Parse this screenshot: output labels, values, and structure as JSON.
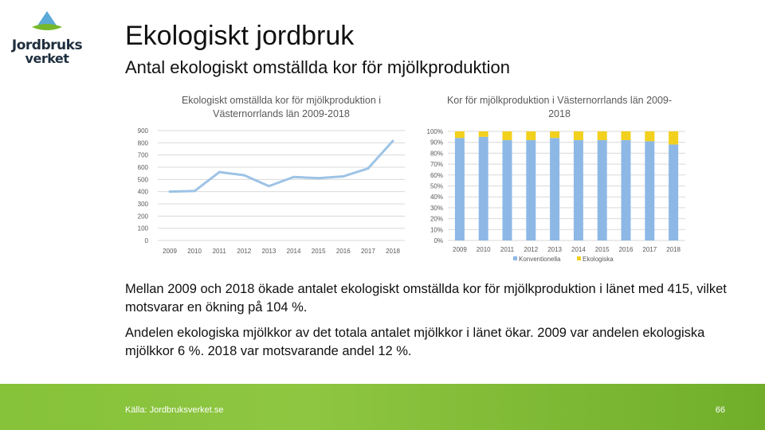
{
  "header": {
    "title": "Ekologiskt jordbruk",
    "subtitle": "Antal ekologiskt omställda kor för mjölkproduktion"
  },
  "logo": {
    "line1": "Jordbruks",
    "line2": "verket",
    "colors": {
      "sky": "#5aa9d6",
      "field": "#76b82a",
      "text": "#1f2f3f"
    }
  },
  "chart_data": [
    {
      "type": "line",
      "title": "Ekologiskt omställda kor för mjölkproduktion i Västernorrlands län 2009-2018",
      "categories": [
        "2009",
        "2010",
        "2011",
        "2012",
        "2013",
        "2014",
        "2015",
        "2016",
        "2017",
        "2018"
      ],
      "series": [
        {
          "values": [
            400,
            405,
            560,
            535,
            445,
            520,
            510,
            525,
            590,
            815
          ],
          "color": "#9dc3e6"
        }
      ],
      "ylim": [
        0,
        900
      ],
      "yticks": [
        0,
        100,
        200,
        300,
        400,
        500,
        600,
        700,
        800,
        900
      ],
      "ytick_labels": [
        "0",
        "100",
        "200",
        "300",
        "400",
        "500",
        "600",
        "700",
        "800",
        "900"
      ],
      "grid": true
    },
    {
      "type": "bar",
      "stacked": true,
      "title": "Kor för mjölkproduktion i Västernorrlands län 2009-2018",
      "categories": [
        "2009",
        "2010",
        "2011",
        "2012",
        "2013",
        "2014",
        "2015",
        "2016",
        "2017",
        "2018"
      ],
      "series": [
        {
          "name": "Konventionella",
          "values": [
            94,
            95,
            92,
            92,
            94,
            92,
            92,
            92,
            91,
            88
          ],
          "color": "#8db8e6"
        },
        {
          "name": "Ekologiska",
          "values": [
            6,
            5,
            8,
            8,
            6,
            8,
            8,
            8,
            9,
            12
          ],
          "color": "#f2d01e"
        }
      ],
      "ylim": [
        0,
        100
      ],
      "yticks": [
        0,
        10,
        20,
        30,
        40,
        50,
        60,
        70,
        80,
        90,
        100
      ],
      "ytick_labels": [
        "0%",
        "10%",
        "20%",
        "30%",
        "40%",
        "50%",
        "60%",
        "70%",
        "80%",
        "90%",
        "100%"
      ],
      "legend": "bottom",
      "grid": true
    }
  ],
  "text": {
    "p1": "Mellan 2009 och 2018 ökade antalet ekologiskt omställda kor för mjölkproduktion i länet med 415, vilket motsvarar en ökning på 104 %.",
    "p2": "Andelen ekologiska mjölkkor av det totala antalet mjölkkor i länet ökar. 2009 var andelen ekologiska mjölkkor 6 %. 2018 var motsvarande andel 12 %."
  },
  "footer": {
    "source": "Källa: Jordbruksverket.se",
    "page": "66"
  }
}
